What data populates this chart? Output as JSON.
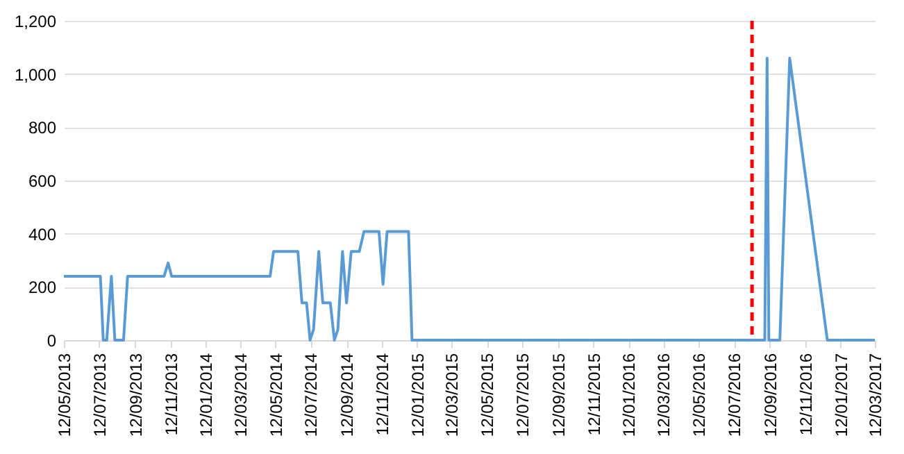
{
  "chart_data": {
    "type": "line",
    "x": [
      "2013-05-12",
      "2013-07-14",
      "2013-07-19",
      "2013-07-25",
      "2013-08-02",
      "2013-08-08",
      "2013-08-23",
      "2013-08-30",
      "2013-11-01",
      "2013-11-08",
      "2013-11-14",
      "2014-05-03",
      "2014-05-09",
      "2014-06-20",
      "2014-06-27",
      "2014-07-05",
      "2014-07-11",
      "2014-07-17",
      "2014-07-26",
      "2014-08-02",
      "2014-08-15",
      "2014-08-22",
      "2014-08-28",
      "2014-09-05",
      "2014-09-12",
      "2014-09-20",
      "2014-10-04",
      "2014-10-12",
      "2014-11-07",
      "2014-11-14",
      "2014-11-21",
      "2014-12-28",
      "2015-01-03",
      "2016-09-03",
      "2016-09-07",
      "2016-09-10",
      "2016-09-29",
      "2016-10-16",
      "2016-12-20",
      "2017-03-12"
    ],
    "series": [
      {
        "color": "#5b9bd5",
        "values": [
          240,
          240,
          0,
          0,
          240,
          0,
          0,
          240,
          240,
          290,
          240,
          240,
          333,
          333,
          140,
          140,
          0,
          40,
          333,
          140,
          140,
          0,
          40,
          333,
          140,
          333,
          333,
          408,
          408,
          210,
          408,
          408,
          0,
          0,
          1060,
          0,
          0,
          1060,
          0,
          0
        ]
      }
    ],
    "xlim": [
      "2013-05-12",
      "2017-03-12"
    ],
    "xticks": [
      {
        "value": "2013-05-12",
        "label": "12/05/2013"
      },
      {
        "value": "2013-07-12",
        "label": "12/07/2013"
      },
      {
        "value": "2013-09-12",
        "label": "12/09/2013"
      },
      {
        "value": "2013-11-12",
        "label": "12/11/2013"
      },
      {
        "value": "2014-01-12",
        "label": "12/01/2014"
      },
      {
        "value": "2014-03-12",
        "label": "12/03/2014"
      },
      {
        "value": "2014-05-12",
        "label": "12/05/2014"
      },
      {
        "value": "2014-07-12",
        "label": "12/07/2014"
      },
      {
        "value": "2014-09-12",
        "label": "12/09/2014"
      },
      {
        "value": "2014-11-12",
        "label": "12/11/2014"
      },
      {
        "value": "2015-01-12",
        "label": "12/01/2015"
      },
      {
        "value": "2015-03-12",
        "label": "12/03/2015"
      },
      {
        "value": "2015-05-12",
        "label": "12/05/2015"
      },
      {
        "value": "2015-07-12",
        "label": "12/07/2015"
      },
      {
        "value": "2015-09-12",
        "label": "12/09/2015"
      },
      {
        "value": "2015-11-12",
        "label": "12/11/2015"
      },
      {
        "value": "2016-01-12",
        "label": "12/01/2016"
      },
      {
        "value": "2016-03-12",
        "label": "12/03/2016"
      },
      {
        "value": "2016-05-12",
        "label": "12/05/2016"
      },
      {
        "value": "2016-07-12",
        "label": "12/07/2016"
      },
      {
        "value": "2016-09-12",
        "label": "12/09/2016"
      },
      {
        "value": "2016-11-12",
        "label": "12/11/2016"
      },
      {
        "value": "2017-01-12",
        "label": "12/01/2017"
      },
      {
        "value": "2017-03-12",
        "label": "12/03/2017"
      }
    ],
    "ylim": [
      0,
      1200
    ],
    "yticks": [
      0,
      200,
      400,
      600,
      800,
      {
        "value": 1000,
        "label": "1,000"
      },
      {
        "value": 1200,
        "label": "1,200"
      }
    ],
    "grid": "y",
    "ref_lines": [
      {
        "axis": "x",
        "value": "2016-08-12",
        "color": "#ff0000",
        "line_style": "dashed"
      }
    ]
  }
}
